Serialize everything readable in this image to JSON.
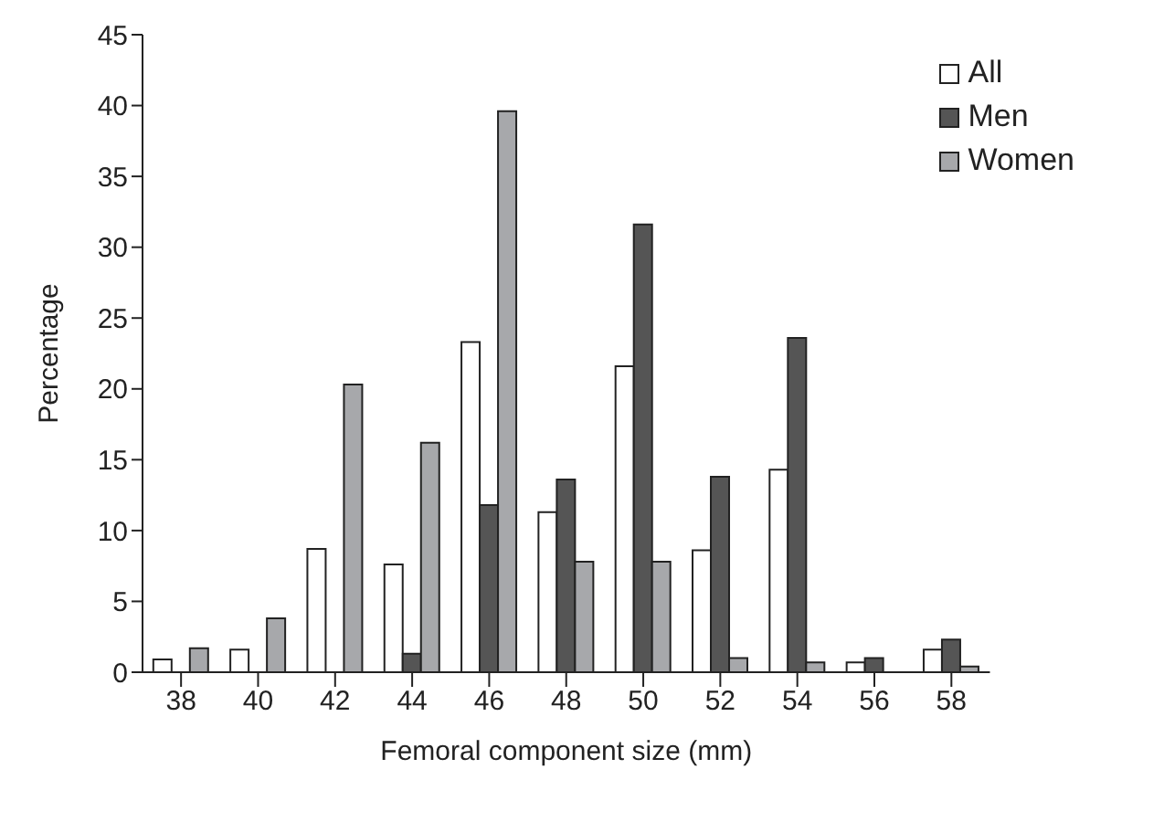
{
  "chart_data": {
    "type": "bar",
    "xlabel": "Femoral component size (mm)",
    "ylabel": "Percentage",
    "categories": [
      "38",
      "40",
      "42",
      "44",
      "46",
      "48",
      "50",
      "52",
      "54",
      "56",
      "58"
    ],
    "series": [
      {
        "name": "All",
        "color": "#ffffff",
        "values": [
          0.9,
          1.6,
          8.7,
          7.6,
          23.3,
          11.3,
          21.6,
          8.6,
          14.3,
          0.7,
          1.6
        ]
      },
      {
        "name": "Men",
        "color": "#555555",
        "values": [
          0,
          0,
          0,
          1.3,
          11.8,
          13.6,
          31.6,
          13.8,
          23.6,
          1.0,
          2.3
        ]
      },
      {
        "name": "Women",
        "color": "#a7a8ab",
        "values": [
          1.7,
          3.8,
          20.3,
          16.2,
          39.6,
          7.8,
          7.8,
          1.0,
          0.7,
          0,
          0.4
        ]
      }
    ],
    "ylim": [
      0,
      45
    ],
    "yticks": [
      0,
      5,
      10,
      15,
      20,
      25,
      30,
      35,
      40,
      45
    ],
    "grid": false,
    "legend": "top right"
  }
}
